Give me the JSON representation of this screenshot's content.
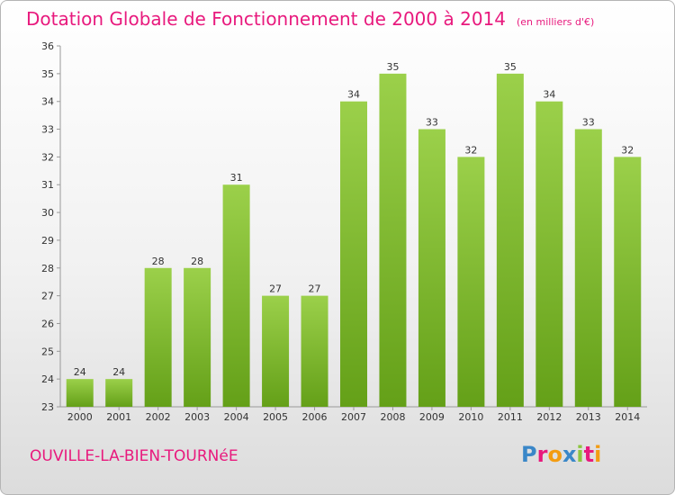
{
  "title": "Dotation Globale de Fonctionnement de 2000 à 2014",
  "subtitle": "(en milliers d'€)",
  "town": "OUVILLE-LA-BIEN-TOURNéE",
  "logo": {
    "letters": [
      "P",
      "r",
      "o",
      "x",
      "i",
      "t",
      "i"
    ],
    "colors": [
      "#3a87c8",
      "#e8197d",
      "#f39c12",
      "#3a87c8",
      "#8cc63f",
      "#e8197d",
      "#f39c12"
    ]
  },
  "colors": {
    "accent": "#e8197d",
    "bar_light": "#9bd04a",
    "bar_dark": "#64a018"
  },
  "chart_data": {
    "type": "bar",
    "categories": [
      "2000",
      "2001",
      "2002",
      "2003",
      "2004",
      "2005",
      "2006",
      "2007",
      "2008",
      "2009",
      "2010",
      "2011",
      "2012",
      "2013",
      "2014"
    ],
    "values": [
      24,
      24,
      28,
      28,
      31,
      27,
      27,
      34,
      35,
      33,
      32,
      35,
      34,
      33,
      32
    ],
    "ylim": [
      23,
      36
    ],
    "yticks": [
      23,
      24,
      25,
      26,
      27,
      28,
      29,
      30,
      31,
      32,
      33,
      34,
      35,
      36
    ],
    "grid": false
  }
}
